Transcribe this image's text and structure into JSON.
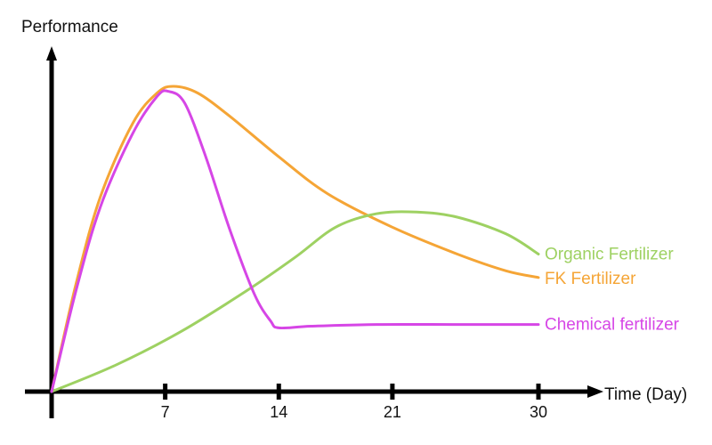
{
  "chart_data": {
    "type": "line",
    "title": "",
    "xlabel": "Time (Day)",
    "ylabel": "Performance",
    "xlim": [
      0,
      33
    ],
    "ylim": [
      0,
      10
    ],
    "xticks": [
      7,
      14,
      21,
      30
    ],
    "xtick_labels": [
      "7",
      "14",
      "21",
      "30"
    ],
    "grid": false,
    "legend": "inline labels at right end of each curve",
    "series": [
      {
        "name": "FK Fertilizer",
        "color": "#f5a536",
        "points": [
          [
            0,
            0
          ],
          [
            1.5,
            3.2
          ],
          [
            3,
            5.8
          ],
          [
            5,
            8.0
          ],
          [
            6.5,
            8.9
          ],
          [
            7.5,
            9.1
          ],
          [
            9,
            8.9
          ],
          [
            11,
            8.2
          ],
          [
            14,
            7.0
          ],
          [
            17,
            5.9
          ],
          [
            21,
            4.9
          ],
          [
            25,
            4.1
          ],
          [
            28,
            3.6
          ],
          [
            30,
            3.4
          ]
        ]
      },
      {
        "name": "Organic Fertilizer",
        "color": "#9ed162",
        "points": [
          [
            0,
            0
          ],
          [
            4,
            0.8
          ],
          [
            8,
            1.8
          ],
          [
            12,
            3.0
          ],
          [
            15,
            4.0
          ],
          [
            17.5,
            4.9
          ],
          [
            20,
            5.3
          ],
          [
            22.5,
            5.35
          ],
          [
            25,
            5.2
          ],
          [
            28,
            4.7
          ],
          [
            30,
            4.1
          ]
        ]
      },
      {
        "name": "Chemical fertilizer",
        "color": "#d646e6",
        "points": [
          [
            0,
            0
          ],
          [
            1.5,
            3.0
          ],
          [
            3,
            5.5
          ],
          [
            5,
            7.7
          ],
          [
            6.5,
            8.8
          ],
          [
            7.2,
            8.95
          ],
          [
            8.2,
            8.6
          ],
          [
            9.5,
            7.0
          ],
          [
            11,
            4.8
          ],
          [
            12.5,
            2.9
          ],
          [
            13.5,
            2.1
          ],
          [
            14,
            1.9
          ],
          [
            16,
            1.95
          ],
          [
            20,
            2.0
          ],
          [
            25,
            2.0
          ],
          [
            30,
            2.0
          ]
        ]
      }
    ]
  }
}
